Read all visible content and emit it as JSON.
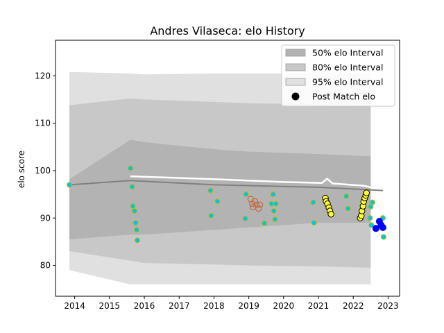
{
  "chart_data": {
    "type": "line",
    "title": "Andres Vilaseca: elo History",
    "xlabel": "",
    "ylabel": "elo score",
    "xlim": [
      2013.45,
      2023.33
    ],
    "ylim": [
      73.5,
      127.5
    ],
    "x_ticks": [
      2014,
      2015,
      2016,
      2017,
      2018,
      2019,
      2020,
      2021,
      2022,
      2023
    ],
    "y_ticks": [
      80,
      90,
      100,
      110,
      120
    ],
    "grid": false,
    "legend": {
      "placement": "top-right",
      "entries": [
        {
          "label": "50% elo Interval",
          "kind": "band",
          "color": "#b3b3b3"
        },
        {
          "label": "80% elo Interval",
          "kind": "band",
          "color": "#c8c8c8"
        },
        {
          "label": "95% elo Interval",
          "kind": "band",
          "color": "#e0e0e0"
        },
        {
          "label": "Post Match elo",
          "kind": "marker",
          "color": "#000000"
        }
      ]
    },
    "colors": {
      "band50": "#b3b3b3",
      "band80": "#c8c8c8",
      "band95": "#e0e0e0",
      "mean_line": "#808080",
      "upper_line": "#ffffff",
      "teal_fill": "#17becf",
      "teal_edge": "#bcbd22",
      "hollow_edge": "#c0704a",
      "yellow_fill": "#ffff33",
      "yellow_edge": "#000000",
      "blue_fill": "#0000ff"
    },
    "series": {
      "mean_line": [
        [
          2013.85,
          97.0
        ],
        [
          2015.6,
          97.9
        ],
        [
          2018.0,
          97.0
        ],
        [
          2021.0,
          96.5
        ],
        [
          2022.85,
          95.8
        ]
      ],
      "upper_line": [
        [
          2015.6,
          98.8
        ],
        [
          2018.0,
          98.2
        ],
        [
          2020.0,
          97.6
        ],
        [
          2021.1,
          97.4
        ],
        [
          2021.25,
          98.3
        ],
        [
          2021.4,
          97.3
        ],
        [
          2022.3,
          96.8
        ],
        [
          2022.8,
          96.0
        ]
      ],
      "band50": {
        "x": [
          2013.85,
          2015.6,
          2016.0,
          2018.0,
          2019.0,
          2021.0,
          2022.5
        ],
        "upper": [
          98.2,
          106.5,
          106.0,
          104.5,
          104.0,
          103.5,
          103.0
        ],
        "lower": [
          85.5,
          86.5,
          86.5,
          87.5,
          88.0,
          89.0,
          89.0
        ]
      },
      "band80": {
        "x": [
          2013.85,
          2015.6,
          2016.0,
          2018.0,
          2019.0,
          2021.0,
          2022.5
        ],
        "upper": [
          113.8,
          115.2,
          115.0,
          114.5,
          114.2,
          114.0,
          113.8
        ],
        "lower": [
          83.0,
          81.0,
          80.5,
          80.2,
          80.0,
          79.8,
          79.5
        ]
      },
      "band95": {
        "x": [
          2013.85,
          2015.6,
          2016.0,
          2018.0,
          2019.0,
          2021.0,
          2022.5
        ],
        "upper": [
          120.8,
          120.5,
          120.3,
          120.5,
          120.5,
          120.5,
          120.5
        ],
        "lower": [
          79.0,
          76.0,
          76.0,
          76.0,
          76.0,
          76.0,
          76.0
        ]
      },
      "post_match_teal": [
        [
          2013.85,
          97.0
        ],
        [
          2015.6,
          100.5
        ],
        [
          2015.65,
          96.6
        ],
        [
          2015.67,
          92.5
        ],
        [
          2015.72,
          91.5
        ],
        [
          2015.75,
          89.0
        ],
        [
          2015.78,
          87.5
        ],
        [
          2015.8,
          85.3
        ],
        [
          2017.9,
          95.8
        ],
        [
          2017.92,
          90.5
        ],
        [
          2018.1,
          93.5
        ],
        [
          2018.9,
          89.9
        ],
        [
          2018.92,
          95.0
        ],
        [
          2019.45,
          88.9
        ],
        [
          2019.65,
          93.0
        ],
        [
          2019.7,
          95.0
        ],
        [
          2019.72,
          91.5
        ],
        [
          2019.75,
          89.7
        ],
        [
          2019.78,
          93.0
        ],
        [
          2020.85,
          93.3
        ],
        [
          2020.87,
          89.0
        ],
        [
          2021.8,
          94.6
        ],
        [
          2021.85,
          92.0
        ],
        [
          2022.5,
          92.4
        ],
        [
          2022.55,
          93.3
        ],
        [
          2022.48,
          90.0
        ],
        [
          2022.52,
          88.5
        ],
        [
          2022.85,
          90.0
        ],
        [
          2022.87,
          86.0
        ]
      ],
      "post_match_hollow": [
        [
          2019.05,
          94.0
        ],
        [
          2019.1,
          93.0
        ],
        [
          2019.12,
          92.3
        ],
        [
          2019.18,
          93.5
        ],
        [
          2019.22,
          92.8
        ],
        [
          2019.28,
          92.0
        ],
        [
          2019.32,
          92.8
        ]
      ],
      "post_match_yellow": [
        [
          2021.2,
          94.2
        ],
        [
          2021.22,
          93.5
        ],
        [
          2021.26,
          93.0
        ],
        [
          2021.3,
          92.2
        ],
        [
          2021.33,
          91.5
        ],
        [
          2021.36,
          90.8
        ],
        [
          2022.2,
          90.0
        ],
        [
          2022.23,
          90.5
        ],
        [
          2022.25,
          91.5
        ],
        [
          2022.28,
          92.5
        ],
        [
          2022.3,
          93.5
        ],
        [
          2022.33,
          94.2
        ],
        [
          2022.36,
          94.8
        ],
        [
          2022.38,
          95.3
        ]
      ],
      "post_match_blue": [
        [
          2022.65,
          87.8
        ],
        [
          2022.75,
          89.3
        ],
        [
          2022.8,
          88.5
        ],
        [
          2022.85,
          88.0
        ]
      ]
    }
  }
}
